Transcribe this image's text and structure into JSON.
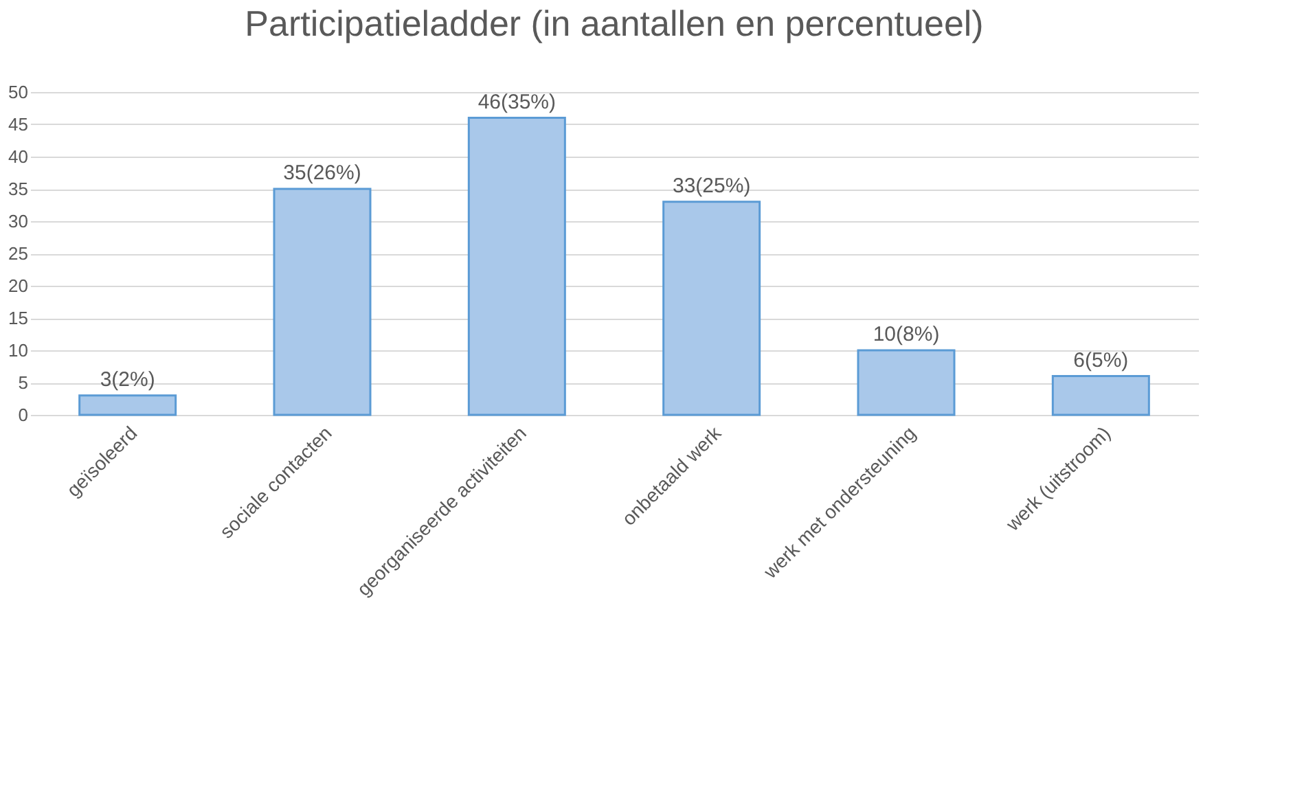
{
  "chart_data": {
    "type": "bar",
    "title": "Participatieladder  (in aantallen en percentueel)",
    "categories": [
      "geïsoleerd",
      "sociale contacten",
      "georganiseerde activiteiten",
      "onbetaald werk",
      "werk met ondersteuning",
      "werk (uitstroom)"
    ],
    "values": [
      3,
      35,
      46,
      33,
      10,
      6
    ],
    "value_labels": [
      "3(2%)",
      "35(26%)",
      "46(35%)",
      "33(25%)",
      "10(8%)",
      "6(5%)"
    ],
    "color": "#a9c8ea",
    "ylim": [
      0,
      50
    ],
    "yticks": [
      0,
      5,
      10,
      15,
      20,
      25,
      30,
      35,
      40,
      45,
      50
    ],
    "grid": "y"
  }
}
